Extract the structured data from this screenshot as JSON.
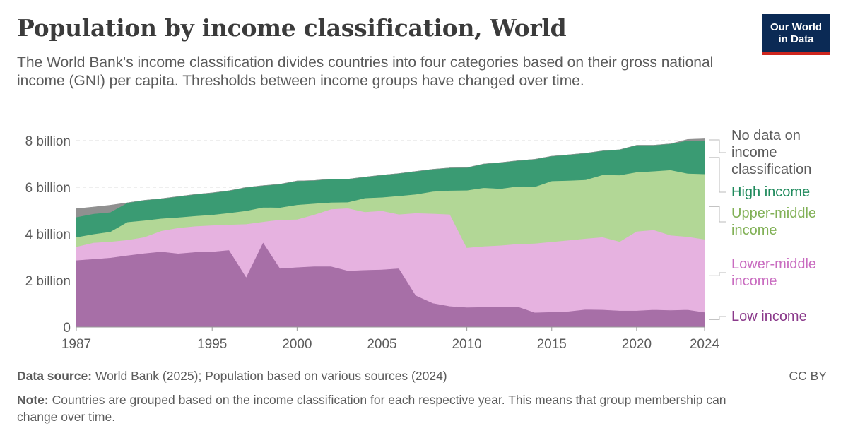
{
  "header": {
    "title": "Population by income classification, World",
    "subtitle": "The World Bank's income classification divides countries into four categories based on their gross national income (GNI) per capita. Thresholds between income groups have changed over time."
  },
  "logo": {
    "line1": "Our World",
    "line2": "in Data",
    "bg_color": "#0b2a55",
    "accent_color": "#ce261e"
  },
  "footer": {
    "source_label": "Data source:",
    "source_text": "World Bank (2025); Population based on various sources (2024)",
    "note_label": "Note:",
    "note_text": "Countries are grouped based on the income classification for each respective year. This means that group membership can change over time.",
    "license": "CC BY"
  },
  "chart_data": {
    "type": "area",
    "stacked": true,
    "title": "Population by income classification, World",
    "x": [
      1987,
      1988,
      1989,
      1990,
      1991,
      1992,
      1993,
      1994,
      1995,
      1996,
      1997,
      1998,
      1999,
      2000,
      2001,
      2002,
      2003,
      2004,
      2005,
      2006,
      2007,
      2008,
      2009,
      2010,
      2011,
      2012,
      2013,
      2014,
      2015,
      2016,
      2017,
      2018,
      2019,
      2020,
      2021,
      2022,
      2023,
      2024
    ],
    "x_ticks": [
      1987,
      1995,
      2000,
      2005,
      2010,
      2015,
      2020,
      2024
    ],
    "y_ticks": [
      {
        "value": 0,
        "label": "0"
      },
      {
        "value": 2,
        "label": "2 billion"
      },
      {
        "value": 4,
        "label": "4 billion"
      },
      {
        "value": 6,
        "label": "6 billion"
      },
      {
        "value": 8,
        "label": "8 billion"
      }
    ],
    "ylim": [
      0,
      8.2
    ],
    "unit": "billion people",
    "series": [
      {
        "name": "Low income",
        "color": "#a76fa7",
        "label_color": "#8b3a8b",
        "values": [
          2.87,
          2.92,
          2.98,
          3.08,
          3.17,
          3.24,
          3.16,
          3.22,
          3.24,
          3.31,
          2.15,
          3.64,
          2.52,
          2.57,
          2.61,
          2.61,
          2.42,
          2.45,
          2.47,
          2.52,
          1.36,
          1.03,
          0.9,
          0.85,
          0.86,
          0.88,
          0.88,
          0.63,
          0.65,
          0.68,
          0.76,
          0.75,
          0.71,
          0.71,
          0.75,
          0.73,
          0.75,
          0.64
        ]
      },
      {
        "name": "Lower-middle income",
        "color": "#e6b2e0",
        "label_color": "#c96cc0",
        "values": [
          0.58,
          0.7,
          0.69,
          0.66,
          0.69,
          0.89,
          1.1,
          1.11,
          1.13,
          1.09,
          2.27,
          0.88,
          2.09,
          2.05,
          2.21,
          2.45,
          2.68,
          2.49,
          2.52,
          2.32,
          3.53,
          3.84,
          3.94,
          2.56,
          2.61,
          2.63,
          2.69,
          2.96,
          3.01,
          3.05,
          3.04,
          3.11,
          2.96,
          3.4,
          3.42,
          3.21,
          3.13,
          3.13
        ]
      },
      {
        "name": "Upper-middle income",
        "color": "#b2d796",
        "label_color": "#82b157",
        "values": [
          0.41,
          0.37,
          0.42,
          0.77,
          0.72,
          0.53,
          0.45,
          0.44,
          0.45,
          0.5,
          0.57,
          0.62,
          0.52,
          0.63,
          0.48,
          0.29,
          0.26,
          0.6,
          0.58,
          0.79,
          0.81,
          0.95,
          1.02,
          2.46,
          2.51,
          2.43,
          2.47,
          2.43,
          2.61,
          2.56,
          2.52,
          2.67,
          2.85,
          2.54,
          2.52,
          2.8,
          2.71,
          2.8
        ]
      },
      {
        "name": "High income",
        "color": "#3a9b73",
        "label_color": "#1f8a5c",
        "values": [
          0.86,
          0.87,
          0.84,
          0.82,
          0.86,
          0.85,
          0.89,
          0.92,
          0.94,
          0.95,
          1.0,
          0.93,
          1.0,
          1.02,
          0.99,
          1.0,
          0.99,
          0.9,
          0.95,
          0.96,
          0.98,
          0.95,
          0.97,
          0.97,
          1.02,
          1.12,
          1.1,
          1.18,
          1.06,
          1.1,
          1.14,
          1.03,
          1.09,
          1.15,
          1.11,
          1.12,
          1.41,
          1.41
        ]
      },
      {
        "name": "No data on income classification",
        "color": "#909090",
        "label_color": "#5b5b5b",
        "values": [
          0.36,
          0.29,
          0.3,
          0.0,
          0.0,
          0.0,
          0.0,
          0.0,
          0.0,
          0.0,
          0.0,
          0.0,
          0.0,
          0.0,
          0.0,
          0.0,
          0.0,
          0.0,
          0.0,
          0.0,
          0.0,
          0.0,
          0.0,
          0.0,
          0.0,
          0.0,
          0.0,
          0.0,
          0.0,
          0.0,
          0.0,
          0.0,
          0.0,
          0.0,
          0.0,
          0.0,
          0.05,
          0.1
        ]
      }
    ],
    "legend": [
      {
        "series": 4,
        "lines": [
          "No data on",
          "income",
          "classification"
        ]
      },
      {
        "series": 3,
        "lines": [
          "High income"
        ]
      },
      {
        "series": 2,
        "lines": [
          "Upper-middle",
          "income"
        ]
      },
      {
        "series": 1,
        "lines": [
          "Lower-middle",
          "income"
        ]
      },
      {
        "series": 0,
        "lines": [
          "Low income"
        ]
      }
    ]
  }
}
